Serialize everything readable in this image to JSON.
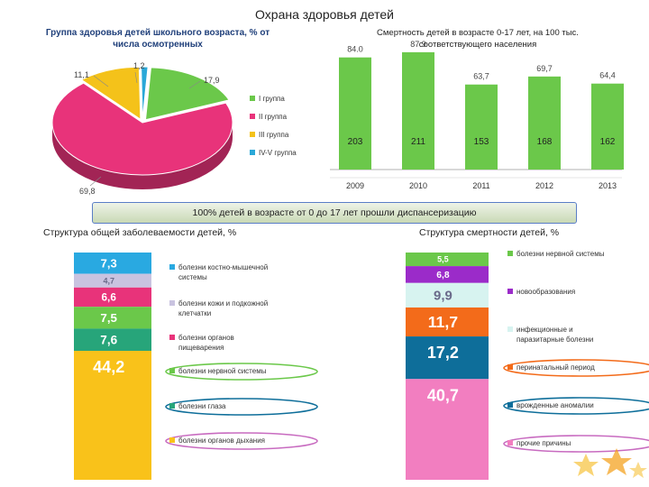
{
  "page": {
    "title": "Охрана здоровья детей",
    "banner": "100% детей в возрасте от 0 до 17 лет прошли диспансеризацию"
  },
  "colors": {
    "pie": [
      "#6bc84a",
      "#e8337a",
      "#f4c21a",
      "#2aa8d8"
    ],
    "bar": "#6bc84a",
    "stack_left": [
      "#29a9e1",
      "#c9c3e0",
      "#e8337a",
      "#6bc84a",
      "#27a57a",
      "#f9c21a"
    ],
    "stack_right": [
      "#6bc84a",
      "#9b2bc9",
      "#d7f3f0",
      "#f36b1a",
      "#0e6e9a",
      "#f27ec0"
    ]
  },
  "chart_data": [
    {
      "type": "pie",
      "title": "Группа здоровья детей школьного возраста, % от числа осмотренных",
      "labels": [
        "I группа",
        "II группа",
        "III группа",
        "IV-V группа"
      ],
      "values": [
        17.9,
        69.8,
        11.1,
        1.2
      ],
      "value_labels": [
        "17,9",
        "69,8",
        "11,1",
        "1,2"
      ],
      "legend": "right"
    },
    {
      "type": "bar",
      "title": "Смертность детей в возрасте 0-17 лет, на 100 тыс. соответствующего населения",
      "categories": [
        "2009",
        "2010",
        "2011",
        "2012",
        "2013"
      ],
      "values": [
        84.0,
        87.9,
        63.7,
        69.7,
        64.4
      ],
      "value_labels": [
        "84.0",
        "87.9",
        "63,7",
        "69,7",
        "64,4"
      ],
      "inner_labels": [
        "203",
        "211",
        "153",
        "168",
        "162"
      ],
      "ylim": [
        0,
        100
      ]
    },
    {
      "type": "bar",
      "stacked": true,
      "title": "Структура общей заболеваемости детей, %",
      "categories": [
        "болезни костно-мышечной системы",
        "болезни кожи и подкожной клетчатки",
        "болезни органов пищеварения",
        "болезни нервной системы",
        "болезни глаза",
        "болезни органов дыхания"
      ],
      "values": [
        7.3,
        4.7,
        6.6,
        7.5,
        7.6,
        44.2
      ],
      "value_labels": [
        "7,3",
        "4,7",
        "6,6",
        "7,5",
        "7,6",
        "44,2"
      ],
      "legend": "right"
    },
    {
      "type": "bar",
      "stacked": true,
      "title": "Структура смертности детей, %",
      "categories": [
        "болезни нервной системы",
        "новообразования",
        "инфекционные и паразитарные болезни",
        "перинатальный период",
        "врожденные аномалии",
        "прочие причины"
      ],
      "values": [
        5.5,
        6.8,
        9.9,
        11.7,
        17.2,
        40.7
      ],
      "value_labels": [
        "5,5",
        "6,8",
        "9,9",
        "11,7",
        "17,2",
        "40,7"
      ],
      "legend": "right"
    }
  ]
}
